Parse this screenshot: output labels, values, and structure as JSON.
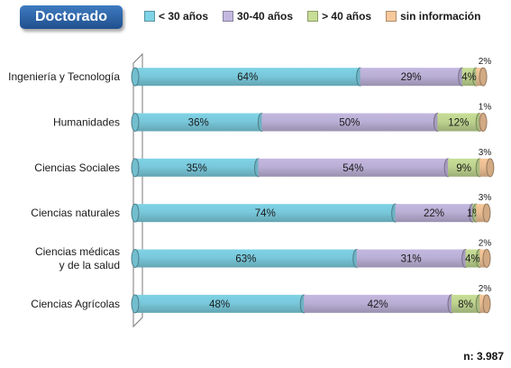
{
  "title": "Doctorado",
  "note": "n: 3.987",
  "colors": {
    "lt30": "#7fd3e6",
    "b30_40": "#c4b8e0",
    "gt40": "#c7de96",
    "sininfo": "#f7c89b"
  },
  "chart_data": {
    "type": "bar",
    "orientation": "horizontal",
    "stacked": true,
    "categories": [
      "Ingeniería y Tecnología",
      "Humanidades",
      "Ciencias Sociales",
      "Ciencias naturales",
      "Ciencias médicas\ny de la salud",
      "Ciencias Agrícolas"
    ],
    "series": [
      {
        "name": "< 30 años",
        "color_key": "lt30",
        "values": [
          64,
          36,
          35,
          74,
          63,
          48
        ]
      },
      {
        "name": "30-40 años",
        "color_key": "b30_40",
        "values": [
          29,
          50,
          54,
          22,
          31,
          42
        ]
      },
      {
        "name": "> 40 años",
        "color_key": "gt40",
        "values": [
          4,
          12,
          9,
          1,
          4,
          8
        ]
      },
      {
        "name": "sin información",
        "color_key": "sininfo",
        "values": [
          2,
          1,
          3,
          3,
          2,
          2
        ]
      }
    ],
    "data_labels": [
      [
        "64%",
        "29%",
        "4%",
        "2%"
      ],
      [
        "36%",
        "50%",
        "12%",
        "1%"
      ],
      [
        "35%",
        "54%",
        "9%",
        "3%"
      ],
      [
        "74%",
        "22%",
        "1%",
        "3%"
      ],
      [
        "63%",
        "31%",
        "4%",
        "2%"
      ],
      [
        "48%",
        "42%",
        "8%",
        "2%"
      ]
    ],
    "xlim": [
      0,
      100
    ],
    "legend_position": "top",
    "grid": false
  }
}
